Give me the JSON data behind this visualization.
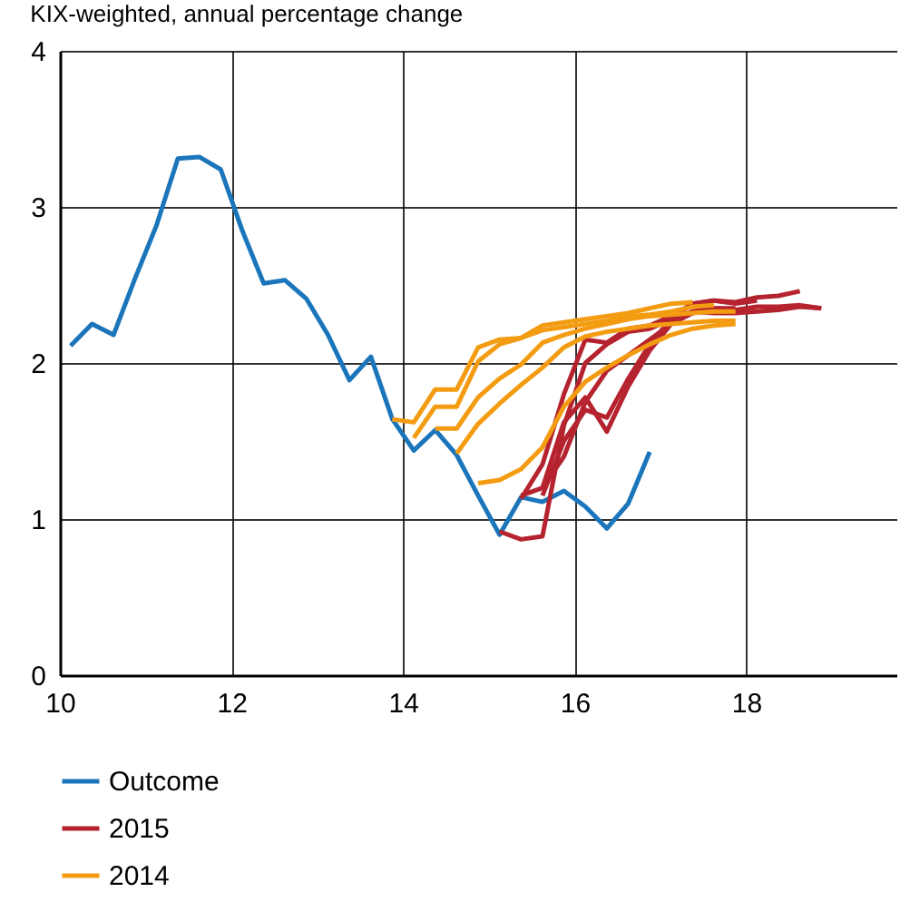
{
  "chart_data": {
    "type": "line",
    "title": "KIX-weighted, annual percentage change",
    "xlim": [
      10,
      19.75
    ],
    "xticks": [
      10,
      12,
      14,
      16,
      18
    ],
    "ylim": [
      0,
      4
    ],
    "yticks": [
      0,
      1,
      2,
      3,
      4
    ],
    "grid": true,
    "legend": "bottom left",
    "line_style": "solid",
    "marker": "none",
    "series": [
      {
        "name": "Outcome",
        "color": "#1b75bb",
        "x": [
          10.125,
          10.375,
          10.625,
          10.875,
          11.125,
          11.375,
          11.625,
          11.875,
          12.125,
          12.375,
          12.625,
          12.875,
          13.125,
          13.375,
          13.625,
          13.875,
          14.125,
          14.375,
          14.625,
          14.875,
          15.125,
          15.375,
          15.625,
          15.875,
          16.125,
          16.375,
          16.625,
          16.875
        ],
        "values": [
          2.11,
          2.25,
          2.18,
          2.54,
          2.88,
          3.31,
          3.32,
          3.24,
          2.85,
          2.51,
          2.53,
          2.41,
          2.18,
          1.89,
          2.04,
          1.64,
          1.44,
          1.57,
          1.41,
          1.15,
          0.9,
          1.14,
          1.11,
          1.18,
          1.08,
          0.94,
          1.1,
          1.43
        ]
      },
      {
        "name": "2015",
        "color": "#b5232f",
        "x": [
          15.125,
          15.375,
          15.625,
          15.875,
          16.125,
          16.375,
          16.625,
          16.875,
          17.125,
          17.375,
          17.625,
          17.875,
          18.125,
          18.375,
          18.625,
          18.875
        ],
        "values": [
          0.92,
          0.87,
          0.89,
          1.6,
          2.0,
          2.12,
          2.2,
          2.22,
          2.28,
          2.33,
          2.35,
          2.34,
          2.36,
          2.36,
          2.37,
          2.35
        ]
      },
      {
        "color": "#b5232f",
        "x": [
          15.375,
          15.625,
          15.875,
          16.125,
          16.375,
          16.625,
          16.875,
          17.125,
          17.375,
          17.625,
          17.875,
          18.125,
          18.375,
          18.625
        ],
        "values": [
          1.13,
          1.35,
          1.8,
          2.15,
          2.13,
          2.22,
          2.24,
          2.3,
          2.38,
          2.4,
          2.39,
          2.42,
          2.43,
          2.46
        ]
      },
      {
        "color": "#b5232f",
        "x": [
          15.375,
          15.625,
          15.875,
          16.125,
          16.375,
          16.625,
          16.875,
          17.125,
          17.375,
          17.625,
          17.875,
          18.125,
          18.375,
          18.625,
          18.875
        ],
        "values": [
          1.15,
          1.2,
          1.62,
          1.78,
          1.56,
          1.85,
          2.08,
          2.25,
          2.33,
          2.32,
          2.32,
          2.33,
          2.34,
          2.36,
          2.35
        ]
      },
      {
        "color": "#b5232f",
        "x": [
          15.625,
          15.875,
          16.125,
          16.375,
          16.625,
          16.875,
          17.125,
          17.375,
          17.625,
          17.875,
          18.125
        ],
        "values": [
          1.15,
          1.5,
          1.7,
          1.65,
          1.9,
          2.12,
          2.28,
          2.38,
          2.4,
          2.38,
          2.4
        ]
      },
      {
        "color": "#b5232f",
        "x": [
          15.625,
          15.875,
          16.125,
          16.375,
          16.625,
          16.875,
          17.125,
          17.375,
          17.625,
          17.875
        ],
        "values": [
          1.2,
          1.4,
          1.75,
          1.95,
          2.05,
          2.15,
          2.25,
          2.32,
          2.35,
          2.35
        ]
      },
      {
        "name": "2014",
        "color": "#f39c12",
        "x": [
          13.875,
          14.125,
          14.375,
          14.625,
          14.875,
          15.125,
          15.375,
          15.625,
          15.875,
          16.125,
          16.375,
          16.625,
          16.875,
          17.125,
          17.375
        ],
        "values": [
          1.64,
          1.62,
          1.83,
          1.83,
          2.1,
          2.15,
          2.16,
          2.24,
          2.26,
          2.28,
          2.3,
          2.32,
          2.35,
          2.38,
          2.39
        ]
      },
      {
        "color": "#f39c12",
        "x": [
          14.125,
          14.375,
          14.625,
          14.875,
          15.125,
          15.375,
          15.625,
          15.875,
          16.125,
          16.375,
          16.625,
          16.875,
          17.125,
          17.375,
          17.625
        ],
        "values": [
          1.52,
          1.72,
          1.72,
          2.01,
          2.12,
          2.16,
          2.21,
          2.23,
          2.25,
          2.27,
          2.3,
          2.31,
          2.33,
          2.36,
          2.37
        ]
      },
      {
        "color": "#f39c12",
        "x": [
          14.375,
          14.625,
          14.875,
          15.125,
          15.375,
          15.625,
          15.875,
          16.125,
          16.375,
          16.625,
          16.875,
          17.125,
          17.375,
          17.625,
          17.875
        ],
        "values": [
          1.58,
          1.58,
          1.78,
          1.9,
          1.99,
          2.13,
          2.18,
          2.22,
          2.25,
          2.28,
          2.3,
          2.31,
          2.32,
          2.33,
          2.33
        ]
      },
      {
        "color": "#f39c12",
        "x": [
          14.625,
          14.875,
          15.125,
          15.375,
          15.625,
          15.875,
          16.125,
          16.375,
          16.625,
          16.875,
          17.125,
          17.375,
          17.625,
          17.875
        ],
        "values": [
          1.42,
          1.61,
          1.74,
          1.86,
          1.97,
          2.1,
          2.17,
          2.2,
          2.22,
          2.24,
          2.25,
          2.26,
          2.27,
          2.27
        ]
      },
      {
        "color": "#f39c12",
        "x": [
          14.875,
          15.125,
          15.375,
          15.625,
          15.875,
          16.125,
          16.375,
          16.625,
          16.875,
          17.125,
          17.375,
          17.625,
          17.875
        ],
        "values": [
          1.23,
          1.25,
          1.32,
          1.46,
          1.72,
          1.88,
          1.97,
          2.05,
          2.12,
          2.18,
          2.22,
          2.24,
          2.25
        ]
      }
    ]
  }
}
